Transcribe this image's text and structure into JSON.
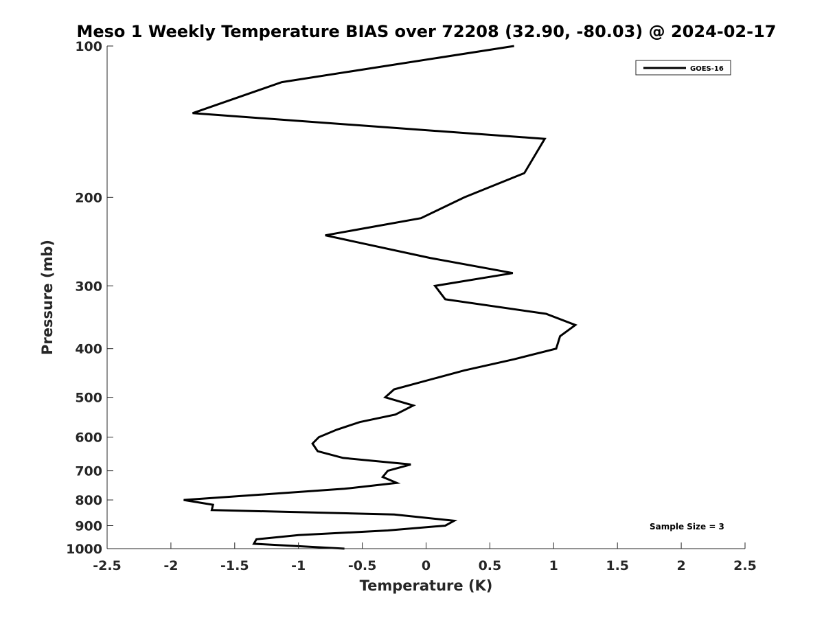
{
  "chart_data": {
    "type": "line",
    "title": "Meso 1 Weekly Temperature BIAS over 72208 (32.90, -80.03) @ 2024-02-17",
    "xlabel": "Temperature (K)",
    "ylabel": "Pressure (mb)",
    "xlim": [
      -2.5,
      2.5
    ],
    "ylim": [
      100,
      1000
    ],
    "y_scale": "log",
    "y_reversed": true,
    "grid": false,
    "x_ticks": [
      -2.5,
      -2,
      -1.5,
      -1,
      -0.5,
      0,
      0.5,
      1,
      1.5,
      2,
      2.5
    ],
    "x_tick_labels": [
      "-2.5",
      "-2",
      "-1.5",
      "-1",
      "-0.5",
      "0",
      "0.5",
      "1",
      "1.5",
      "2",
      "2.5"
    ],
    "y_ticks": [
      100,
      200,
      300,
      400,
      500,
      600,
      700,
      800,
      900,
      1000
    ],
    "y_tick_labels": [
      "100",
      "200",
      "300",
      "400",
      "500",
      "600",
      "700",
      "800",
      "900",
      "1000"
    ],
    "legend": {
      "placement": "top-right",
      "entries": [
        "GOES-16"
      ]
    },
    "annotation": "Sample Size = 3",
    "series": [
      {
        "name": "GOES-16",
        "color": "#000000",
        "points": [
          {
            "t": 0.69,
            "p": 100
          },
          {
            "t": -1.13,
            "p": 118
          },
          {
            "t": -1.83,
            "p": 136
          },
          {
            "t": 0.93,
            "p": 153
          },
          {
            "t": 0.77,
            "p": 179
          },
          {
            "t": 0.3,
            "p": 200
          },
          {
            "t": -0.04,
            "p": 220
          },
          {
            "t": -0.79,
            "p": 238
          },
          {
            "t": 0.03,
            "p": 264
          },
          {
            "t": 0.68,
            "p": 283
          },
          {
            "t": 0.07,
            "p": 300
          },
          {
            "t": 0.15,
            "p": 319
          },
          {
            "t": 0.94,
            "p": 341
          },
          {
            "t": 1.17,
            "p": 359
          },
          {
            "t": 1.05,
            "p": 378
          },
          {
            "t": 1.02,
            "p": 400
          },
          {
            "t": 0.69,
            "p": 420
          },
          {
            "t": 0.3,
            "p": 442
          },
          {
            "t": -0.25,
            "p": 482
          },
          {
            "t": -0.32,
            "p": 500
          },
          {
            "t": -0.1,
            "p": 519
          },
          {
            "t": -0.24,
            "p": 541
          },
          {
            "t": -0.52,
            "p": 560
          },
          {
            "t": -0.7,
            "p": 580
          },
          {
            "t": -0.84,
            "p": 600
          },
          {
            "t": -0.89,
            "p": 618
          },
          {
            "t": -0.85,
            "p": 640
          },
          {
            "t": -0.65,
            "p": 660
          },
          {
            "t": -0.12,
            "p": 680
          },
          {
            "t": -0.3,
            "p": 700
          },
          {
            "t": -0.34,
            "p": 720
          },
          {
            "t": -0.23,
            "p": 740
          },
          {
            "t": -0.64,
            "p": 760
          },
          {
            "t": -1.9,
            "p": 800
          },
          {
            "t": -1.67,
            "p": 818
          },
          {
            "t": -1.68,
            "p": 838
          },
          {
            "t": -0.25,
            "p": 855
          },
          {
            "t": 0.22,
            "p": 880
          },
          {
            "t": 0.15,
            "p": 900
          },
          {
            "t": -0.3,
            "p": 920
          },
          {
            "t": -1.0,
            "p": 940
          },
          {
            "t": -1.33,
            "p": 958
          },
          {
            "t": -1.35,
            "p": 978
          },
          {
            "t": -0.64,
            "p": 1000
          }
        ]
      }
    ]
  }
}
